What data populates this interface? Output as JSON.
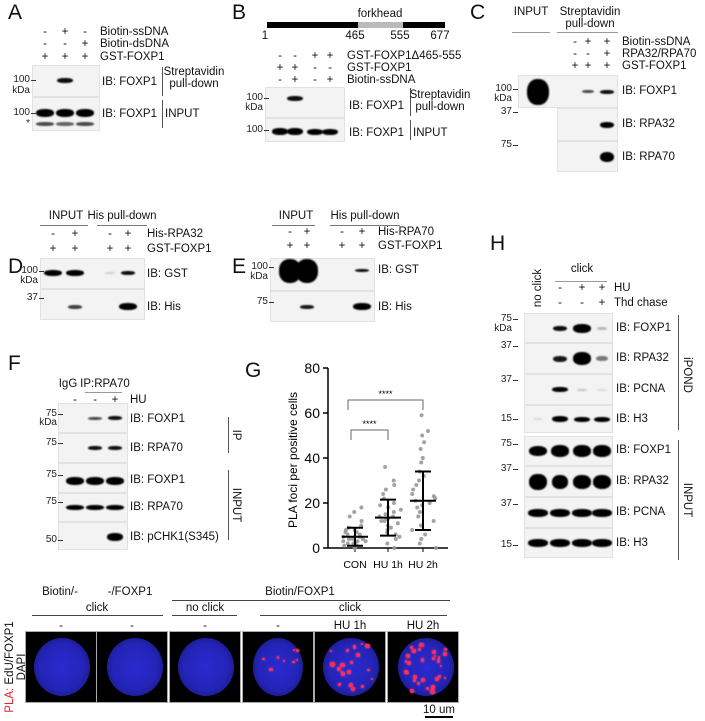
{
  "figure": {
    "A": {
      "label": "A",
      "rows": [
        {
          "signs": [
            "-",
            "+",
            "-"
          ],
          "label": "Biotin-ssDNA"
        },
        {
          "signs": [
            "-",
            "-",
            "+"
          ],
          "label": "Biotin-dsDNA"
        },
        {
          "signs": [
            "+",
            "+",
            "+"
          ],
          "label": "GST-FOXP1"
        }
      ],
      "blots": [
        "IB: FOXP1",
        "IB: FOXP1"
      ],
      "sections": [
        "Streptavidin\npull-down",
        "INPUT"
      ],
      "mw": [
        "100",
        "kDa",
        "100",
        "*"
      ]
    },
    "B": {
      "label": "B",
      "domain": {
        "name": "forkhead",
        "positions": [
          "1",
          "465",
          "555",
          "677"
        ]
      },
      "rows": [
        {
          "signs": [
            "-",
            "-",
            "+",
            "+"
          ],
          "label": "GST-FOXP1Δ465-555"
        },
        {
          "signs": [
            "+",
            "+",
            "-",
            "-"
          ],
          "label": "GST-FOXP1"
        },
        {
          "signs": [
            "-",
            "+",
            "-",
            "+"
          ],
          "label": "Biotin-ssDNA"
        }
      ],
      "blots": [
        "IB: FOXP1",
        "IB: FOXP1"
      ],
      "sections": [
        "Streptavidin\npull-down",
        "INPUT"
      ],
      "mw": [
        "100",
        "kDa",
        "100"
      ]
    },
    "C": {
      "label": "C",
      "groups": [
        "INPUT",
        "Streptavidin\npull-down"
      ],
      "rows": [
        {
          "signs": [
            "-",
            "+",
            "+"
          ],
          "label": "Biotin-ssDNA"
        },
        {
          "signs": [
            "-",
            "-",
            "+"
          ],
          "label": "RPA32/RPA70"
        },
        {
          "signs": [
            "+",
            "+",
            "+"
          ],
          "label": "GST-FOXP1"
        }
      ],
      "blots": [
        "IB: FOXP1",
        "IB: RPA32",
        "IB: RPA70"
      ],
      "mw": [
        "100",
        "kDa",
        "37",
        "75"
      ]
    },
    "D": {
      "label": "D",
      "groups": [
        "INPUT",
        "His pull-down"
      ],
      "rows": [
        {
          "signs": [
            "-",
            "+",
            "-",
            "+"
          ],
          "label": "His-RPA32"
        },
        {
          "signs": [
            "+",
            "+",
            "+",
            "+"
          ],
          "label": "GST-FOXP1"
        }
      ],
      "blots": [
        "IB: GST",
        "IB: His"
      ],
      "mw": [
        "100",
        "kDa",
        "37"
      ]
    },
    "E": {
      "label": "E",
      "groups": [
        "INPUT",
        "His pull-down"
      ],
      "rows": [
        {
          "signs": [
            "-",
            "+",
            "-",
            "+"
          ],
          "label": "His-RPA70"
        },
        {
          "signs": [
            "+",
            "+",
            "+",
            "+"
          ],
          "label": "GST-FOXP1"
        }
      ],
      "blots": [
        "IB: GST",
        "IB: His"
      ],
      "mw": [
        "100",
        "kDa",
        "75"
      ]
    },
    "F": {
      "label": "F",
      "groups": [
        "IgG",
        "IP:RPA70"
      ],
      "rows": [
        {
          "signs": [
            "-",
            "-",
            "+"
          ],
          "label": "HU"
        }
      ],
      "blots": [
        "IB: FOXP1",
        "IB: RPA70",
        "IB: FOXP1",
        "IB: RPA70",
        "IB: pCHK1(S345)"
      ],
      "sections": [
        "IP",
        "INPUT"
      ],
      "mw": [
        "75",
        "kDa",
        "75",
        "75",
        "75",
        "50"
      ]
    },
    "G": {
      "label": "G"
    },
    "H": {
      "label": "H",
      "groups": [
        "no click",
        "click"
      ],
      "rows": [
        {
          "signs": [
            "-",
            "+",
            "+"
          ],
          "label": "HU"
        },
        {
          "signs": [
            "-",
            "-",
            "+"
          ],
          "label": "Thd chase"
        }
      ],
      "blots": [
        "IB: FOXP1",
        "IB: RPA32",
        "IB: PCNA",
        "IB: H3",
        "IB: FOXP1",
        "IB: RPA32",
        "IB: PCNA",
        "IB: H3"
      ],
      "sections": [
        "iPOND",
        "INPUT"
      ],
      "mw": [
        "75",
        "kDa",
        "37",
        "37",
        "15",
        "75",
        "37",
        "37",
        "15"
      ]
    },
    "I": {
      "top_groups": [
        "Biotin/-",
        "-/FOXP1",
        "Biotin/FOXP1"
      ],
      "mid_groups": [
        "click",
        "no click",
        "click"
      ],
      "conditions": [
        "-",
        "-",
        "-",
        "-",
        "HU 1h",
        "HU 2h"
      ],
      "ylabel_red": "PLA:",
      "ylabel_rest": " EdU/FOXP1",
      "ylabel2": "DAPI",
      "scale_bar": "10 um",
      "colors": {
        "dapi": "#2424b8",
        "pla": "#ff2a55"
      }
    }
  },
  "chart_data": {
    "type": "scatter",
    "title": "",
    "xlabel": "",
    "ylabel": "PLA foci per positive cells",
    "categories": [
      "CON",
      "HU 1h",
      "HU 2h"
    ],
    "ylim": [
      0,
      80
    ],
    "yticks": [
      "0",
      "20",
      "40",
      "60",
      "80"
    ],
    "grid": false,
    "point_color": "#999999",
    "series": [
      {
        "values": [
          0,
          1,
          1,
          2,
          2,
          2,
          3,
          3,
          3,
          4,
          4,
          4,
          5,
          5,
          5,
          6,
          6,
          7,
          7,
          8,
          8,
          9,
          10,
          12,
          14,
          16,
          18
        ],
        "mean": 5,
        "sd": [
          1,
          9
        ]
      },
      {
        "values": [
          0,
          2,
          4,
          5,
          6,
          7,
          8,
          9,
          10,
          11,
          12,
          12,
          13,
          13,
          14,
          14,
          15,
          16,
          17,
          18,
          19,
          20,
          22,
          24,
          26,
          28,
          30,
          36
        ],
        "mean": 13.5,
        "sd": [
          5.5,
          21.5
        ]
      },
      {
        "values": [
          0,
          2,
          4,
          6,
          8,
          10,
          12,
          14,
          16,
          18,
          19,
          20,
          21,
          22,
          23,
          24,
          26,
          28,
          30,
          32,
          34,
          38,
          40,
          44,
          47,
          50,
          52,
          59
        ],
        "mean": 21,
        "sd": [
          8,
          34
        ]
      }
    ],
    "significance": [
      {
        "groups": [
          "CON",
          "HU 1h"
        ],
        "label": "****"
      },
      {
        "groups": [
          "CON",
          "HU 2h"
        ],
        "label": "****"
      }
    ]
  }
}
